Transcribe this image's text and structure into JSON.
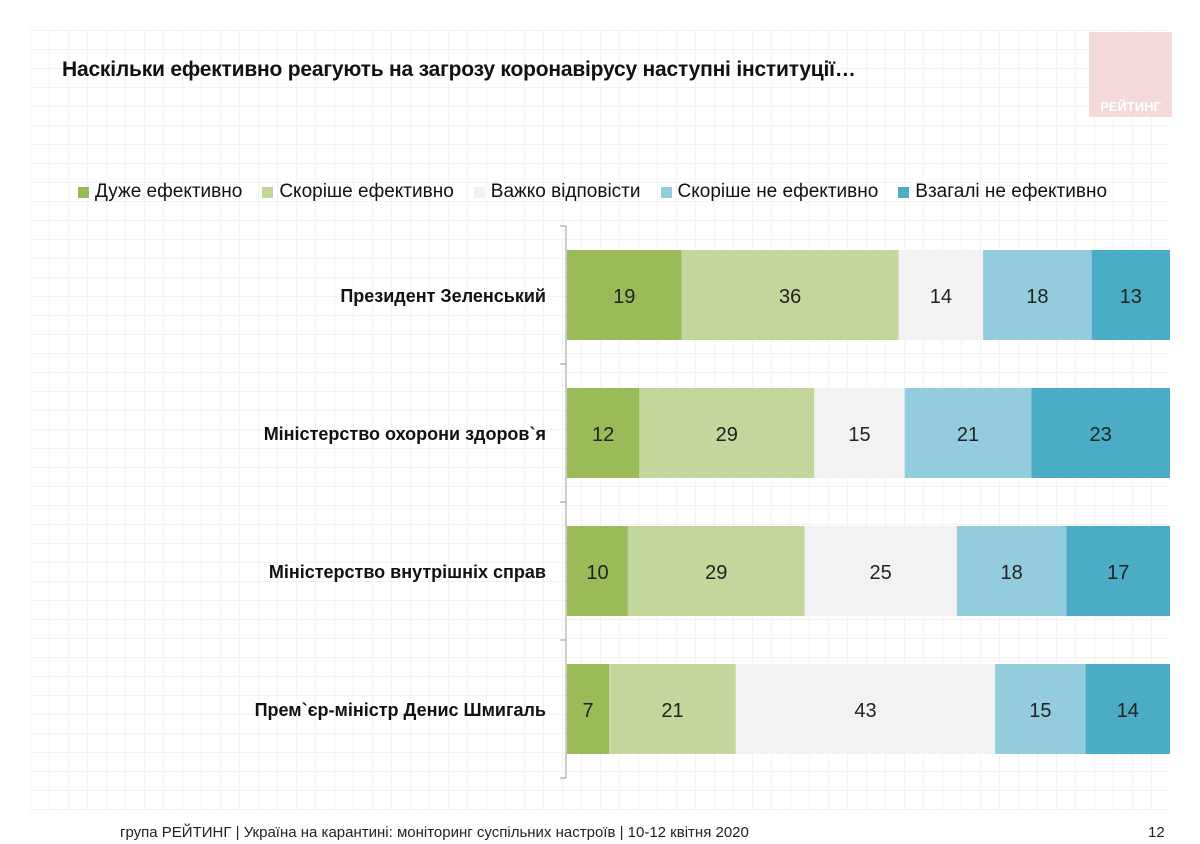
{
  "title": "Наскільки ефективно реагують на загрозу коронавірусу наступні інституції…",
  "logo_text": "РЕЙТИНГ",
  "footer": "група РЕЙТИНГ | Україна на карантині: моніторинг суспільних настроїв  | 10-12 квітня  2020",
  "page_number": "12",
  "chart_data": {
    "type": "bar",
    "orientation": "horizontal",
    "stacked": true,
    "legend_position": "top",
    "categories": [
      "Президент Зеленський",
      "Міністерство охорони здоров`я",
      "Міністерство внутрішніх справ",
      "Прем`єр-міністр Денис Шмигаль"
    ],
    "series": [
      {
        "name": "Дуже ефективно",
        "color": "#9bbb59",
        "values": [
          19,
          12,
          10,
          7
        ]
      },
      {
        "name": "Скоріше ефективно",
        "color": "#c3d69b",
        "values": [
          36,
          29,
          29,
          21
        ]
      },
      {
        "name": "Важко відповісти",
        "color": "#f2f2f2",
        "values": [
          14,
          15,
          25,
          43
        ]
      },
      {
        "name": "Скоріше не ефективно",
        "color": "#93cddd",
        "values": [
          18,
          21,
          18,
          15
        ]
      },
      {
        "name": "Взагалі не ефективно",
        "color": "#4bacc6",
        "values": [
          13,
          23,
          17,
          14
        ]
      }
    ]
  }
}
